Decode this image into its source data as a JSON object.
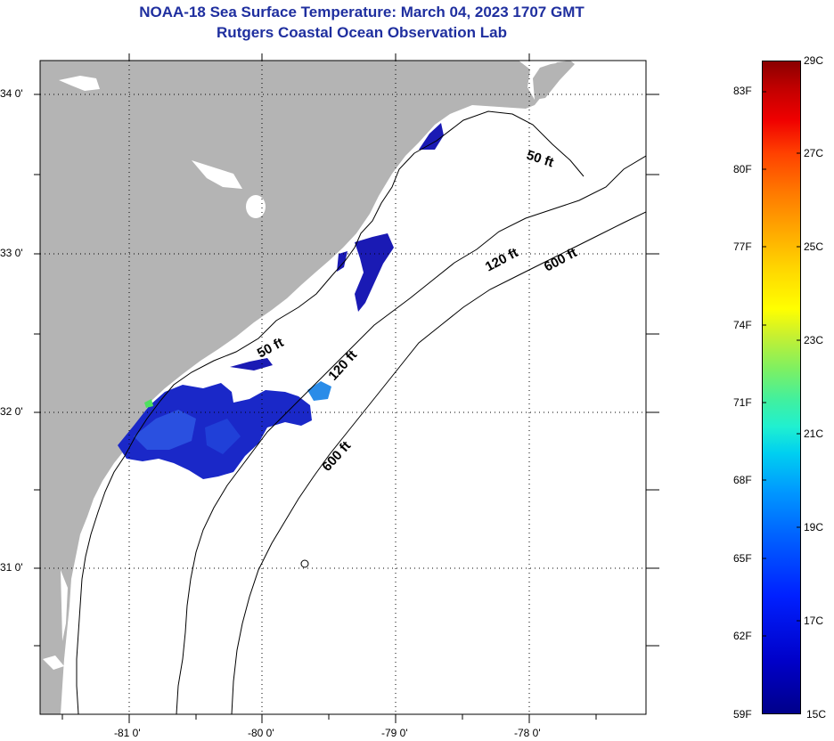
{
  "title_line1": "NOAA-18 Sea Surface Temperature:  March 04, 2023 1707 GMT",
  "title_line2": "Rutgers Coastal Ocean Observation Lab",
  "lat_labels": [
    "34 0'",
    "33 0'",
    "32 0'",
    "31 0'"
  ],
  "lon_labels": [
    "-81 0'",
    "-80 0'",
    "-79 0'",
    "-78 0'"
  ],
  "contour_labels": {
    "c50a": "50 ft",
    "c50b": "50 ft",
    "c120a": "120 ft",
    "c120b": "120 ft",
    "c600a": "600 ft",
    "c600b": "600 ft"
  },
  "colorbar": {
    "fahrenheit": [
      "83F",
      "80F",
      "77F",
      "74F",
      "71F",
      "68F",
      "65F",
      "62F",
      "59F"
    ],
    "celsius": [
      "29C",
      "27C",
      "25C",
      "23C",
      "21C",
      "19C",
      "17C",
      "15C"
    ]
  },
  "colors": {
    "land": "#b4b4b4",
    "sst_dark_blue": "#1a1ab4",
    "title": "#1f2f9f"
  }
}
